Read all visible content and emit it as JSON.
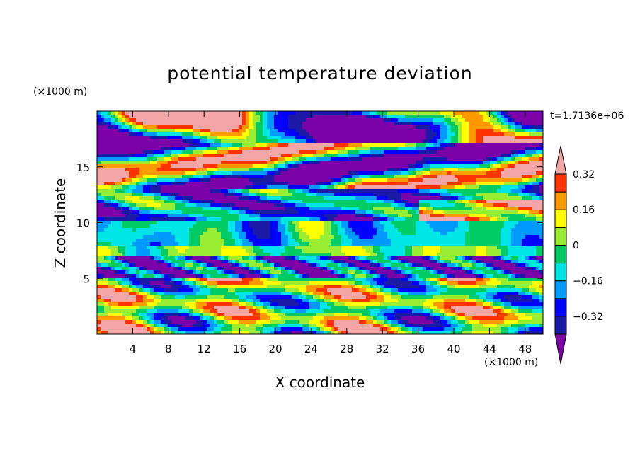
{
  "chart_data": {
    "type": "heatmap",
    "title": "potential temperature deviation",
    "xlabel": "X coordinate",
    "ylabel": "Z coordinate",
    "x_unit": "(×1000 m)",
    "y_unit": "(×1000 m)",
    "time_label": "t=1.7136e+06",
    "xlim": [
      0,
      50
    ],
    "ylim": [
      0,
      20
    ],
    "x_ticks": [
      4,
      8,
      12,
      16,
      20,
      24,
      28,
      32,
      36,
      40,
      44,
      48
    ],
    "y_ticks": [
      5,
      10,
      15
    ],
    "x_tick_labels": [
      "4",
      "8",
      "12",
      "16",
      "20",
      "24",
      "28",
      "32",
      "36",
      "40",
      "44",
      "48"
    ],
    "y_tick_labels": [
      "5",
      "10",
      "15"
    ],
    "colorbar": {
      "levels": [
        -0.4,
        -0.32,
        -0.24,
        -0.16,
        -0.08,
        0,
        0.08,
        0.16,
        0.24,
        0.32,
        0.4
      ],
      "tick_values": [
        -0.32,
        -0.16,
        0,
        0.16,
        0.32
      ],
      "tick_labels": [
        "−0.32",
        "−0.16",
        "0",
        "0.16",
        "0.32"
      ],
      "colors": [
        "#7b00a8",
        "#1a1aa6",
        "#0000ff",
        "#0099ff",
        "#00e5e5",
        "#00cc66",
        "#99ee33",
        "#ffff00",
        "#ff9900",
        "#ff3300",
        "#f4a6a6"
      ]
    }
  }
}
